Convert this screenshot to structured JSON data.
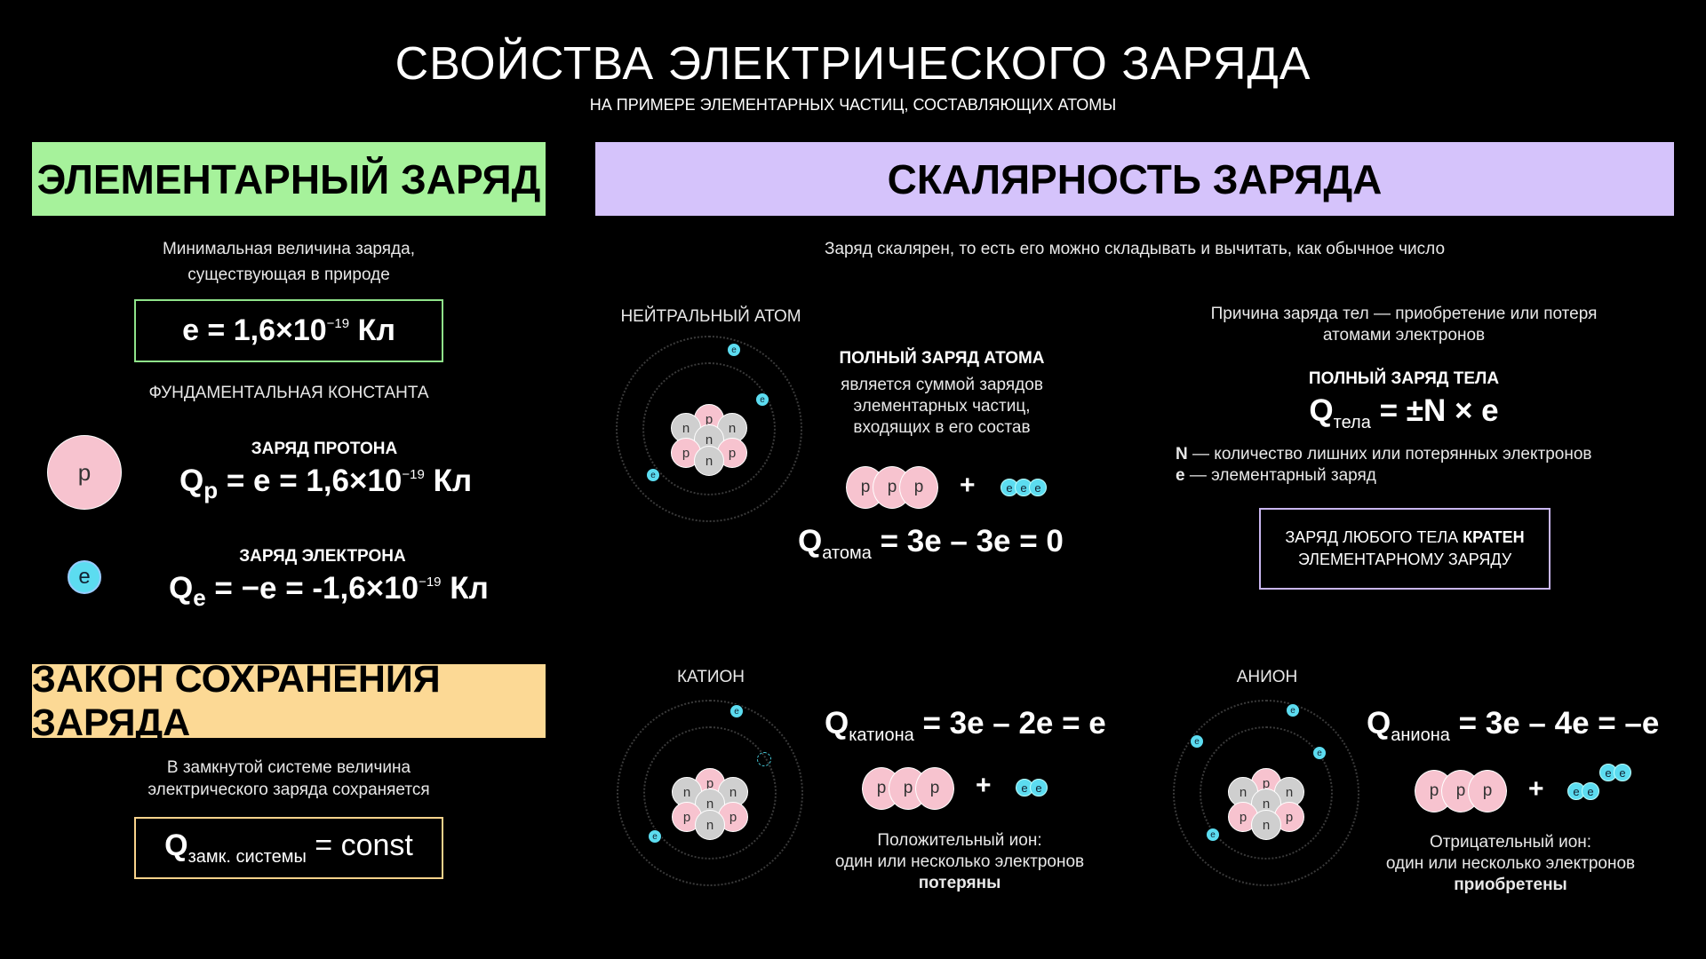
{
  "header": {
    "title": "СВОЙСТВА ЭЛЕКТРИЧЕСКОГО ЗАРЯДА",
    "subtitle": "НА ПРИМЕРЕ ЭЛЕМЕНТАРНЫХ ЧАСТИЦ, СОСТАВЛЯЮЩИХ АТОМЫ"
  },
  "elementary": {
    "banner": "ЭЛЕМЕНТАРНЫЙ ЗАРЯД",
    "desc_line1": "Минимальная величина заряда,",
    "desc_line2": "существующая в природе",
    "formula_lhs": "e = 1,6×10",
    "formula_exp": "−19",
    "formula_unit": " Кл",
    "constant_label": "ФУНДАМЕНТАЛЬНАЯ КОНСТАНТА",
    "proton_symbol": "p",
    "proton_title": "ЗАРЯД ПРОТОНА",
    "proton_q": "Q",
    "proton_sub": "p",
    "proton_formula": " =  e = 1,6×10",
    "proton_exp": "−19",
    "proton_unit": " Кл",
    "electron_symbol": "e",
    "electron_title": "ЗАРЯД ЭЛЕКТРОНА",
    "electron_q": "Q",
    "electron_sub": "e",
    "electron_formula": " = −e =  -1,6×10",
    "electron_exp": "−19",
    "electron_unit": " Кл"
  },
  "conservation": {
    "banner": "ЗАКОН СОХРАНЕНИЯ ЗАРЯДА",
    "desc_line1": "В замкнутой системе величина",
    "desc_line2": "электрического заряда сохраняется",
    "q": "Q",
    "sub": "замк. системы",
    "rhs": " = const"
  },
  "scalar": {
    "banner": "СКАЛЯРНОСТЬ ЗАРЯДА",
    "desc": "Заряд скалярен, то есть его можно складывать и вычитать, как обычное число",
    "neutral_label": "НЕЙТРАЛЬНЫЙ АТОМ",
    "full_title": "ПОЛНЫЙ ЗАРЯД АТОМА",
    "full_line1": "является суммой зарядов",
    "full_line2": "элементарных частиц,",
    "full_line3": "входящих в его состав",
    "atom_q": "Q",
    "atom_sub": "атома",
    "atom_rhs": " =  3e – 3e = 0",
    "reason_line1": "Причина заряда тел — приобретение или потеря",
    "reason_line2": "атомами электронов",
    "body_title": "ПОЛНЫЙ ЗАРЯД ТЕЛА",
    "body_q": "Q",
    "body_sub": "тела",
    "body_rhs": " = ±N × e",
    "n_key": "N",
    "n_def": " — количество лишних или потерянных электронов",
    "e_key": "e",
    "e_def": " — элементарный заряд",
    "box_line1a": "ЗАРЯД ЛЮБОГО ТЕЛА ",
    "box_line1b": "КРАТЕН",
    "box_line2": "ЭЛЕМЕНТАРНОМУ ЗАРЯДУ",
    "cation_label": "КАТИОН",
    "cation_q": "Q",
    "cation_sub": "катиона",
    "cation_rhs": " = 3e – 2e = e",
    "cation_line1": "Положительный ион:",
    "cation_line2": "один или несколько электронов",
    "cation_line3": "потеряны",
    "anion_label": "АНИОН",
    "anion_q": "Q",
    "anion_sub": "аниона",
    "anion_rhs": " = 3e – 4e = –e",
    "anion_line1": "Отрицательный ион:",
    "anion_line2": "один или несколько электронов",
    "anion_line3": "приобретены",
    "plus": "+",
    "p": "p",
    "n": "n",
    "e": "e"
  },
  "colors": {
    "green": "#a6f29b",
    "purple": "#d5c3fb",
    "orange": "#fcd995",
    "proton": "#f7c3cf",
    "electron": "#5cdcf0",
    "neutron": "#cfcfcf"
  }
}
